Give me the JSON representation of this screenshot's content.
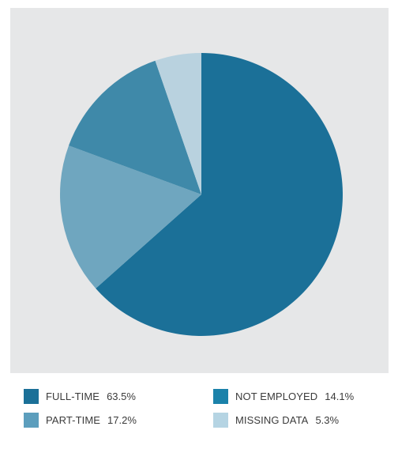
{
  "chart_data": {
    "type": "pie",
    "title": "",
    "slices": [
      {
        "label": "FULL-TIME",
        "value": 63.5,
        "value_label": "63.5%",
        "color": "#1b7098"
      },
      {
        "label": "PART-TIME",
        "value": 17.2,
        "value_label": "17.2%",
        "color": "#6fa6bf"
      },
      {
        "label": "NOT EMPLOYED",
        "value": 14.1,
        "value_label": "14.1%",
        "color": "#3f89a9"
      },
      {
        "label": "MISSING DATA",
        "value": 5.3,
        "value_label": "5.3%",
        "color": "#b9d2df"
      }
    ],
    "start_angle": "12 o'clock",
    "direction": "clockwise",
    "legend_position": "bottom"
  },
  "legend": {
    "items": [
      {
        "label": "FULL-TIME",
        "value": "63.5%",
        "color": "#1b7098"
      },
      {
        "label": "NOT EMPLOYED",
        "value": "14.1%",
        "color": "#1b82aa"
      },
      {
        "label": "PART-TIME",
        "value": "17.2%",
        "color": "#5c9ebd"
      },
      {
        "label": "MISSING DATA",
        "value": "5.3%",
        "color": "#b5d4e3"
      }
    ]
  },
  "colors": {
    "panel_background": "#e6e7e8"
  }
}
